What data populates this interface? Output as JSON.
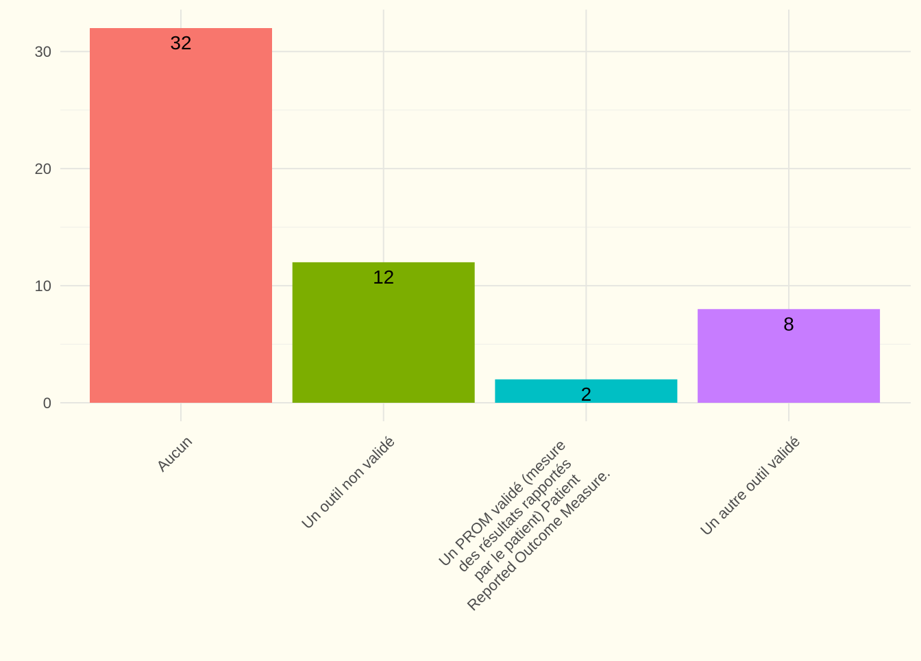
{
  "chart_data": {
    "type": "bar",
    "categories": [
      "Aucun",
      "Un outil non validé",
      "Un PROM validé (mesure\ndes résultats rapportés\npar le patient) Patient\nReported Outcome Measure.",
      "Un autre outil validé"
    ],
    "values": [
      32,
      12,
      2,
      8
    ],
    "colors": [
      "#f8766d",
      "#7cae00",
      "#00bfc4",
      "#c77cff"
    ],
    "ylim": [
      0,
      33.6
    ],
    "yticks": [
      0,
      10,
      20,
      30
    ],
    "grid": true,
    "legend": "none",
    "title": "",
    "xlabel": "",
    "ylabel": ""
  }
}
